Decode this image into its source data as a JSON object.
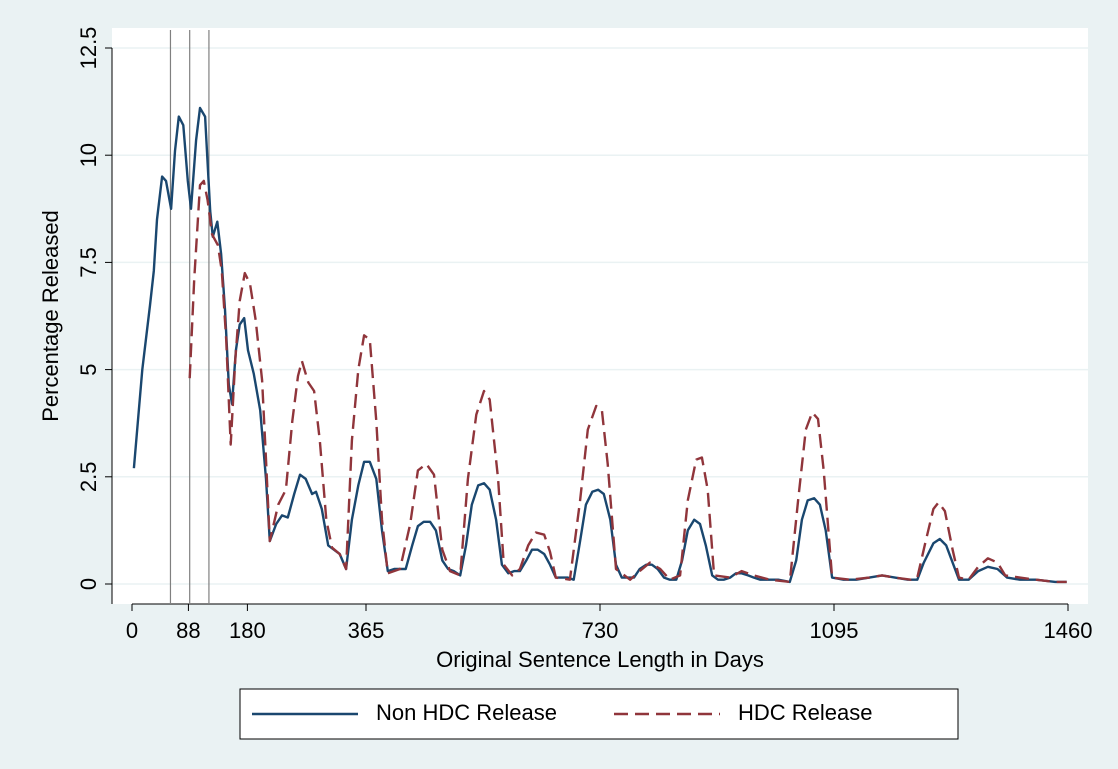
{
  "chart_data": {
    "type": "line",
    "xlabel": "Original Sentence Length in Days",
    "ylabel": "Percentage Released",
    "xlim": [
      0,
      1460
    ],
    "ylim": [
      0,
      12.5
    ],
    "xticks": [
      0,
      88,
      180,
      365,
      730,
      1095,
      1460
    ],
    "yticks": [
      0,
      2.5,
      5,
      7.5,
      10,
      12.5
    ],
    "grid": true,
    "xlines": [
      60,
      90,
      120
    ],
    "legend": "bottom",
    "series": [
      {
        "name": "Non HDC Release",
        "color": "#1a476f",
        "dash": "solid",
        "x": [
          3,
          16,
          28,
          34,
          39,
          47,
          53,
          61,
          67,
          73,
          80,
          87,
          92,
          100,
          106,
          114,
          122,
          126,
          133,
          139,
          145,
          151,
          156,
          162,
          168,
          175,
          181,
          190,
          200,
          209,
          215,
          225,
          234,
          243,
          253,
          262,
          271,
          281,
          287,
          296,
          306,
          315,
          324,
          334,
          343,
          353,
          362,
          371,
          381,
          390,
          399,
          409,
          418,
          427,
          437,
          446,
          455,
          465,
          474,
          484,
          493,
          502,
          512,
          521,
          530,
          540,
          549,
          558,
          568,
          577,
          587,
          596,
          605,
          615,
          624,
          633,
          643,
          652,
          661,
          671,
          680,
          689,
          699,
          708,
          718,
          727,
          736,
          746,
          755,
          764,
          774,
          783,
          792,
          802,
          811,
          820,
          830,
          839,
          849,
          858,
          867,
          877,
          886,
          895,
          905,
          914,
          923,
          933,
          942,
          951,
          961,
          970,
          980,
          995,
          1008,
          1026,
          1036,
          1045,
          1054,
          1064,
          1073,
          1082,
          1092,
          1110,
          1130,
          1150,
          1170,
          1190,
          1210,
          1225,
          1235,
          1250,
          1260,
          1270,
          1280,
          1290,
          1305,
          1320,
          1335,
          1350,
          1365,
          1385,
          1410,
          1440,
          1458
        ],
        "values": [
          2.7,
          5.0,
          6.5,
          7.3,
          8.5,
          9.5,
          9.4,
          8.75,
          10.1,
          10.9,
          10.7,
          9.4,
          8.75,
          10.35,
          11.1,
          10.9,
          8.7,
          8.1,
          8.45,
          7.7,
          6.4,
          4.65,
          4.2,
          5.45,
          6.05,
          6.2,
          5.45,
          4.9,
          4.05,
          2.45,
          1.0,
          1.4,
          1.6,
          1.55,
          2.1,
          2.55,
          2.45,
          2.1,
          2.15,
          1.75,
          0.9,
          0.8,
          0.7,
          0.35,
          1.5,
          2.3,
          2.85,
          2.85,
          2.45,
          1.25,
          0.3,
          0.35,
          0.35,
          0.35,
          0.9,
          1.35,
          1.45,
          1.45,
          1.25,
          0.55,
          0.35,
          0.3,
          0.2,
          0.9,
          1.85,
          2.3,
          2.35,
          2.2,
          1.5,
          0.45,
          0.25,
          0.3,
          0.3,
          0.55,
          0.8,
          0.8,
          0.7,
          0.45,
          0.15,
          0.15,
          0.15,
          0.1,
          1.0,
          1.85,
          2.15,
          2.2,
          2.1,
          1.5,
          0.45,
          0.15,
          0.15,
          0.15,
          0.35,
          0.45,
          0.45,
          0.35,
          0.15,
          0.1,
          0.1,
          0.55,
          1.25,
          1.5,
          1.4,
          0.9,
          0.2,
          0.1,
          0.1,
          0.15,
          0.25,
          0.25,
          0.2,
          0.15,
          0.1,
          0.1,
          0.1,
          0.05,
          0.55,
          1.5,
          1.95,
          2.0,
          1.85,
          1.25,
          0.15,
          0.1,
          0.1,
          0.15,
          0.2,
          0.15,
          0.1,
          0.1,
          0.5,
          0.95,
          1.05,
          0.9,
          0.5,
          0.1,
          0.1,
          0.3,
          0.4,
          0.35,
          0.15,
          0.1,
          0.1,
          0.05,
          0.05
        ]
      },
      {
        "name": "HDC Release",
        "color": "#90353b",
        "dash": "dashed",
        "x": [
          90,
          97,
          106,
          112,
          118,
          125,
          134,
          140,
          147,
          154,
          161,
          168,
          176,
          184,
          193,
          203,
          209,
          215,
          228,
          240,
          250,
          259,
          265,
          275,
          284,
          293,
          303,
          312,
          324,
          334,
          343,
          353,
          362,
          371,
          381,
          390,
          399,
          418,
          434,
          446,
          459,
          471,
          484,
          496,
          512,
          524,
          537,
          549,
          558,
          571,
          580,
          593,
          605,
          618,
          630,
          643,
          652,
          661,
          683,
          699,
          711,
          724,
          733,
          742,
          755,
          777,
          792,
          808,
          824,
          839,
          855,
          867,
          880,
          889,
          898,
          908,
          933,
          951,
          970,
          995,
          1026,
          1039,
          1051,
          1061,
          1070,
          1079,
          1092,
          1120,
          1150,
          1170,
          1190,
          1215,
          1225,
          1238,
          1250,
          1258,
          1268,
          1280,
          1290,
          1305,
          1320,
          1335,
          1350,
          1362,
          1385,
          1410,
          1440,
          1458
        ],
        "values": [
          4.8,
          7.1,
          9.3,
          9.4,
          8.95,
          8.15,
          7.9,
          7.3,
          5.7,
          3.25,
          5.2,
          6.6,
          7.25,
          7.0,
          6.15,
          4.75,
          2.9,
          1.0,
          1.85,
          2.2,
          3.8,
          4.85,
          5.2,
          4.7,
          4.5,
          3.35,
          1.5,
          0.85,
          0.7,
          0.35,
          3.35,
          5.0,
          5.8,
          5.7,
          3.8,
          1.5,
          0.25,
          0.35,
          1.4,
          2.65,
          2.8,
          2.55,
          0.8,
          0.3,
          0.2,
          2.45,
          3.95,
          4.5,
          4.3,
          2.45,
          0.45,
          0.2,
          0.35,
          0.9,
          1.2,
          1.15,
          0.75,
          0.15,
          0.1,
          1.95,
          3.6,
          4.15,
          4.05,
          2.8,
          0.35,
          0.1,
          0.3,
          0.5,
          0.35,
          0.1,
          0.2,
          1.95,
          2.9,
          2.95,
          2.2,
          0.2,
          0.15,
          0.3,
          0.2,
          0.1,
          0.05,
          1.95,
          3.6,
          4.0,
          3.85,
          2.65,
          0.15,
          0.1,
          0.15,
          0.2,
          0.15,
          0.1,
          0.15,
          1.0,
          1.75,
          1.9,
          1.7,
          0.8,
          0.15,
          0.1,
          0.4,
          0.6,
          0.5,
          0.2,
          0.15,
          0.1,
          0.05,
          0.05
        ]
      }
    ]
  }
}
